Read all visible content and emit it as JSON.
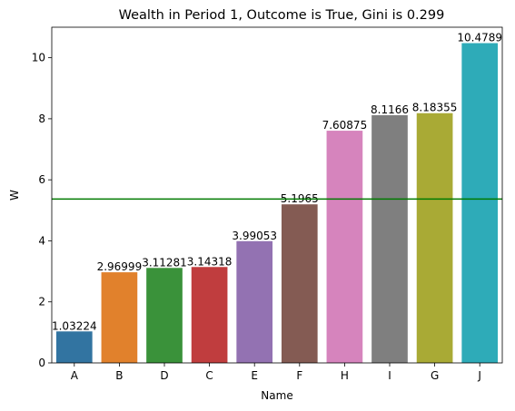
{
  "chart_data": {
    "type": "bar",
    "title": "Wealth in Period 1, Outcome is True, Gini is 0.299",
    "xlabel": "Name",
    "ylabel": "W",
    "categories": [
      "A",
      "B",
      "D",
      "C",
      "E",
      "F",
      "H",
      "I",
      "G",
      "J"
    ],
    "values": [
      1.03224,
      2.96999,
      3.11281,
      3.14318,
      3.99053,
      5.1965,
      7.60875,
      8.1166,
      8.18355,
      10.4789
    ],
    "data_labels": [
      "1.03224",
      "2.96999",
      "3.11281",
      "3.14318",
      "3.99053",
      "5.1965",
      "7.60875",
      "8.1166",
      "8.18355",
      "10.4789"
    ],
    "colors": [
      "#3274a1",
      "#e1812c",
      "#3a923a",
      "#c03d3e",
      "#9372b2",
      "#845b53",
      "#d684bd",
      "#7f7f7f",
      "#a9aa35",
      "#2eabb8"
    ],
    "ylim": [
      0,
      11
    ],
    "yticks": [
      0,
      2,
      4,
      6,
      8,
      10
    ],
    "reference_line": {
      "value": 5.37,
      "color": "#007a00"
    },
    "grid": false,
    "legend": "none"
  }
}
